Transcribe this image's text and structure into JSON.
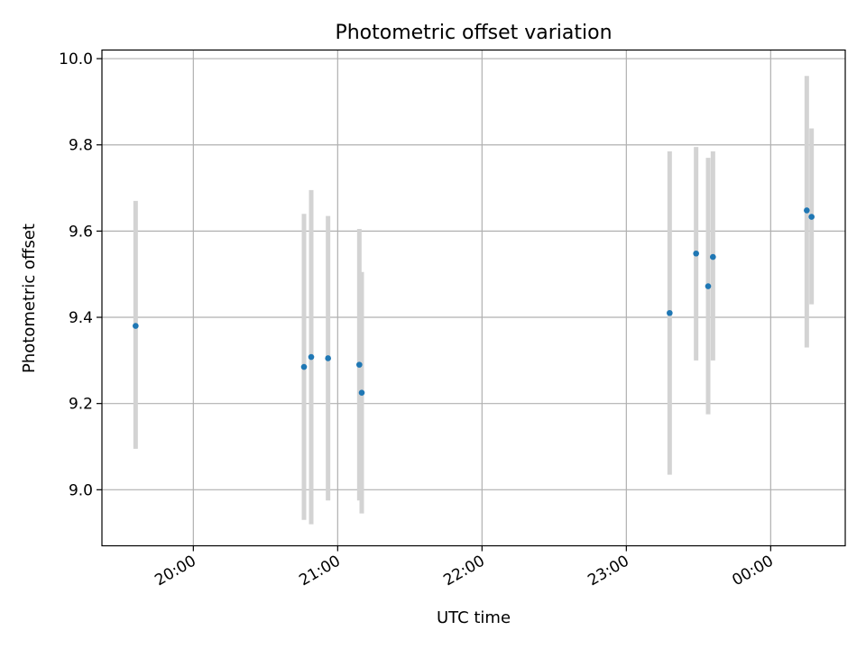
{
  "chart_data": {
    "type": "scatter",
    "title": "Photometric offset variation",
    "xlabel": "UTC time",
    "ylabel": "Photometric offset",
    "x_axis": {
      "start": "19:22",
      "end": "00:31",
      "ticks": [
        "20:00",
        "21:00",
        "22:00",
        "23:00",
        "00:00"
      ],
      "tick_minutes_after_midnight": [
        1200,
        1260,
        1320,
        1380,
        1440
      ],
      "tick_label_rotation": 30
    },
    "y_axis": {
      "ylim": [
        8.87,
        10.02
      ],
      "ticks": [
        "9.0",
        "9.2",
        "9.4",
        "9.6",
        "9.8",
        "10.0"
      ],
      "tick_values": [
        9.0,
        9.2,
        9.4,
        9.6,
        9.8,
        10.0
      ]
    },
    "grid": true,
    "colors": {
      "point": "#1f77b4",
      "errorbar": "#d3d3d3",
      "grid": "#b0b0b0"
    },
    "series": [
      {
        "points": [
          {
            "x": "19:36",
            "y": 9.38,
            "ymin": 9.095,
            "ymax": 9.67
          },
          {
            "x": "20:46",
            "y": 9.285,
            "ymin": 8.93,
            "ymax": 9.64
          },
          {
            "x": "20:49",
            "y": 9.308,
            "ymin": 8.92,
            "ymax": 9.695
          },
          {
            "x": "20:56",
            "y": 9.305,
            "ymin": 8.975,
            "ymax": 9.635
          },
          {
            "x": "21:09",
            "y": 9.29,
            "ymin": 8.975,
            "ymax": 9.605
          },
          {
            "x": "21:10",
            "y": 9.225,
            "ymin": 8.945,
            "ymax": 9.505
          },
          {
            "x": "23:18",
            "y": 9.41,
            "ymin": 9.035,
            "ymax": 9.785
          },
          {
            "x": "23:29",
            "y": 9.548,
            "ymin": 9.3,
            "ymax": 9.795
          },
          {
            "x": "23:34",
            "y": 9.472,
            "ymin": 9.175,
            "ymax": 9.77
          },
          {
            "x": "23:36",
            "y": 9.54,
            "ymin": 9.3,
            "ymax": 9.785
          },
          {
            "x": "00:15",
            "y": 9.648,
            "ymin": 9.33,
            "ymax": 9.96
          },
          {
            "x": "00:17",
            "y": 9.633,
            "ymin": 9.43,
            "ymax": 9.838
          }
        ]
      }
    ]
  }
}
